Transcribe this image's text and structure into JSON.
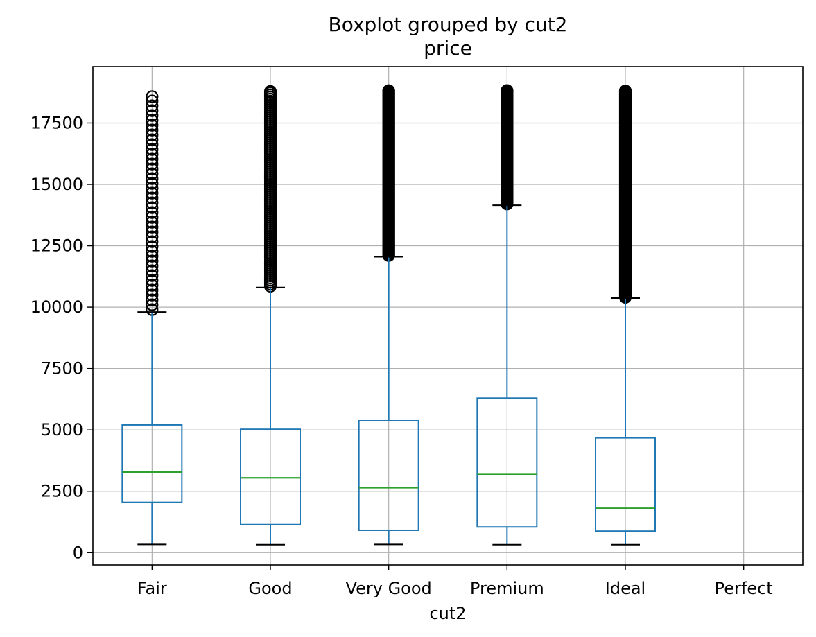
{
  "chart_data": {
    "type": "box",
    "title": "Boxplot grouped by cut2",
    "subtitle": "price",
    "xlabel": "cut2",
    "ylabel": "",
    "ylim": [
      -500,
      19800
    ],
    "yticks": [
      0,
      2500,
      5000,
      7500,
      10000,
      12500,
      15000,
      17500
    ],
    "ytick_labels": [
      "0",
      "2500",
      "5000",
      "7500",
      "10000",
      "12500",
      "15000",
      "17500"
    ],
    "categories": [
      "Fair",
      "Good",
      "Very Good",
      "Premium",
      "Ideal",
      "Perfect"
    ],
    "grid": true,
    "colors": {
      "box": "#1f77b4",
      "median": "#2ca02c",
      "grid": "#b0b0b0",
      "flier": "#000000"
    },
    "boxes": [
      {
        "category": "Fair",
        "whisker_low": 337,
        "q1": 2050,
        "median": 3282,
        "q3": 5206,
        "whisker_high": 9800,
        "outlier_min": 9900,
        "outlier_max": 18574,
        "outlier_density": "sparse"
      },
      {
        "category": "Good",
        "whisker_low": 327,
        "q1": 1145,
        "median": 3050,
        "q3": 5028,
        "whisker_high": 10800,
        "outlier_min": 10850,
        "outlier_max": 18788,
        "outlier_density": "medium"
      },
      {
        "category": "Very Good",
        "whisker_low": 336,
        "q1": 912,
        "median": 2648,
        "q3": 5373,
        "whisker_high": 12050,
        "outlier_min": 12100,
        "outlier_max": 18818,
        "outlier_density": "dense"
      },
      {
        "category": "Premium",
        "whisker_low": 326,
        "q1": 1046,
        "median": 3185,
        "q3": 6296,
        "whisker_high": 14150,
        "outlier_min": 14200,
        "outlier_max": 18823,
        "outlier_density": "dense"
      },
      {
        "category": "Ideal",
        "whisker_low": 326,
        "q1": 878,
        "median": 1810,
        "q3": 4678,
        "whisker_high": 10370,
        "outlier_min": 10400,
        "outlier_max": 18806,
        "outlier_density": "dense"
      },
      {
        "category": "Perfect",
        "empty": true
      }
    ]
  }
}
